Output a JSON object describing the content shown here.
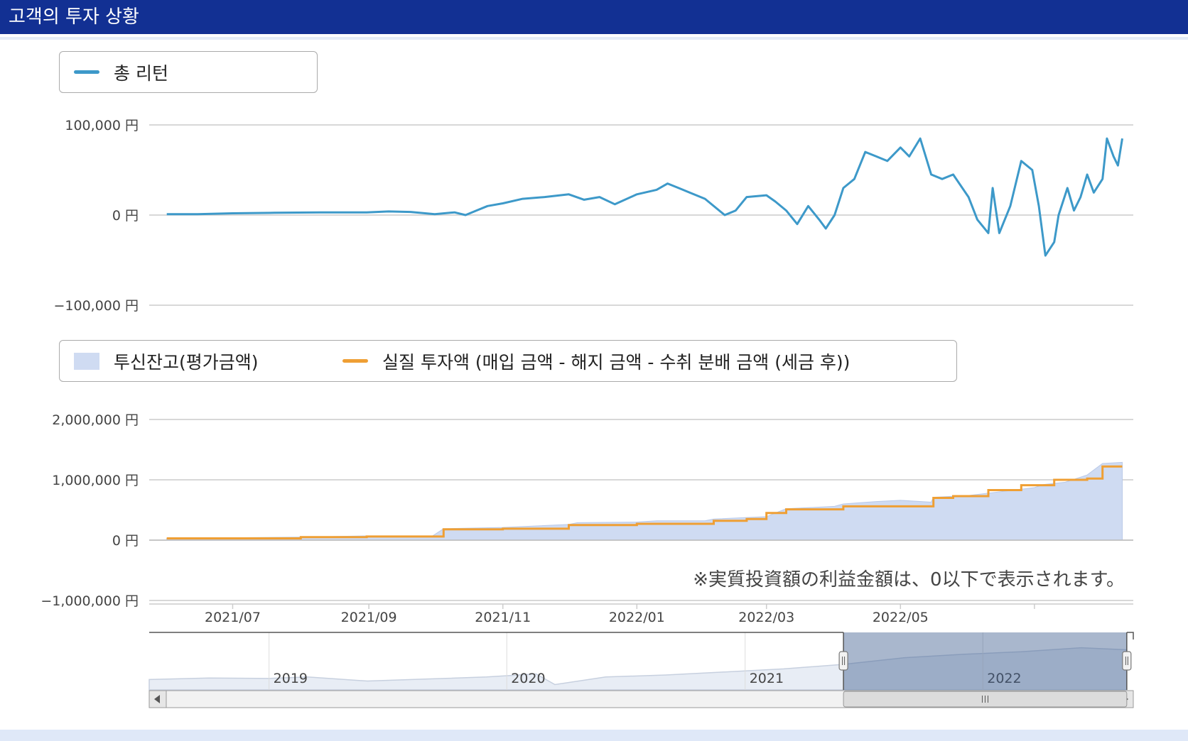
{
  "header": {
    "title": "고객의 투자 상황"
  },
  "colors": {
    "header_bg": "#123093",
    "return_line": "#3d99c9",
    "balance_area": "#cfdbf2",
    "invest_line": "#ef9f34"
  },
  "chart_data": [
    {
      "type": "line",
      "legend": [
        "총 리턴"
      ],
      "ylim": [
        -100000,
        100000
      ],
      "yticks": [
        {
          "value": 100000,
          "label": "100,000 円"
        },
        {
          "value": 0,
          "label": "0 円"
        },
        {
          "value": -100000,
          "label": "−100,000 円"
        }
      ],
      "series": [
        {
          "name": "총 리턴",
          "color": "#3d99c9",
          "points": [
            [
              "2021-06-01",
              1000
            ],
            [
              "2021-06-15",
              1000
            ],
            [
              "2021-07-01",
              2000
            ],
            [
              "2021-07-20",
              2500
            ],
            [
              "2021-08-10",
              3000
            ],
            [
              "2021-08-31",
              3000
            ],
            [
              "2021-09-10",
              4000
            ],
            [
              "2021-09-20",
              3500
            ],
            [
              "2021-10-01",
              1000
            ],
            [
              "2021-10-10",
              3000
            ],
            [
              "2021-10-15",
              0
            ],
            [
              "2021-10-20",
              5000
            ],
            [
              "2021-10-25",
              10000
            ],
            [
              "2021-11-01",
              13000
            ],
            [
              "2021-11-10",
              18000
            ],
            [
              "2021-11-20",
              20000
            ],
            [
              "2021-12-01",
              23000
            ],
            [
              "2021-12-08",
              17000
            ],
            [
              "2021-12-15",
              20000
            ],
            [
              "2021-12-22",
              12000
            ],
            [
              "2022-01-01",
              23000
            ],
            [
              "2022-01-10",
              28000
            ],
            [
              "2022-01-15",
              35000
            ],
            [
              "2022-01-20",
              30000
            ],
            [
              "2022-01-25",
              25000
            ],
            [
              "2022-02-01",
              18000
            ],
            [
              "2022-02-10",
              0
            ],
            [
              "2022-02-15",
              5000
            ],
            [
              "2022-02-20",
              20000
            ],
            [
              "2022-03-01",
              22000
            ],
            [
              "2022-03-05",
              15000
            ],
            [
              "2022-03-10",
              5000
            ],
            [
              "2022-03-15",
              -10000
            ],
            [
              "2022-03-20",
              10000
            ],
            [
              "2022-03-25",
              -5000
            ],
            [
              "2022-03-28",
              -15000
            ],
            [
              "2022-04-01",
              0
            ],
            [
              "2022-04-05",
              30000
            ],
            [
              "2022-04-10",
              40000
            ],
            [
              "2022-04-15",
              70000
            ],
            [
              "2022-04-20",
              65000
            ],
            [
              "2022-04-25",
              60000
            ],
            [
              "2022-05-01",
              75000
            ],
            [
              "2022-05-05",
              65000
            ],
            [
              "2022-05-10",
              85000
            ],
            [
              "2022-05-15",
              45000
            ],
            [
              "2022-05-20",
              40000
            ],
            [
              "2022-05-25",
              45000
            ],
            [
              "2022-06-01",
              20000
            ],
            [
              "2022-06-05",
              -5000
            ],
            [
              "2022-06-10",
              -20000
            ],
            [
              "2022-06-12",
              30000
            ],
            [
              "2022-06-15",
              -20000
            ],
            [
              "2022-06-20",
              10000
            ],
            [
              "2022-06-25",
              60000
            ],
            [
              "2022-06-30",
              50000
            ],
            [
              "2022-07-03",
              10000
            ],
            [
              "2022-07-06",
              -45000
            ],
            [
              "2022-07-10",
              -30000
            ],
            [
              "2022-07-12",
              0
            ],
            [
              "2022-07-16",
              30000
            ],
            [
              "2022-07-19",
              5000
            ],
            [
              "2022-07-22",
              20000
            ],
            [
              "2022-07-25",
              45000
            ],
            [
              "2022-07-28",
              25000
            ],
            [
              "2022-08-01",
              40000
            ],
            [
              "2022-08-03",
              85000
            ],
            [
              "2022-08-06",
              65000
            ],
            [
              "2022-08-08",
              55000
            ],
            [
              "2022-08-10",
              85000
            ]
          ]
        }
      ]
    },
    {
      "type": "area",
      "legend": [
        "투신잔고(평가금액)",
        "실질 투자액 (매입 금액 - 해지 금액 - 수취 분배 금액 (세금 후))"
      ],
      "ylim": [
        -1000000,
        2000000
      ],
      "yticks": [
        {
          "value": 2000000,
          "label": "2,000,000 円"
        },
        {
          "value": 1000000,
          "label": "1,000,000 円"
        },
        {
          "value": 0,
          "label": "0 円"
        },
        {
          "value": -1000000,
          "label": "−1,000,000 円"
        }
      ],
      "x_range": [
        "2021-05-24",
        "2022-08-15"
      ],
      "x_ticks": [
        "2021/07",
        "2021/09",
        "2021/11",
        "2022/01",
        "2022/03",
        "2022/05"
      ],
      "note": "※実質投資額の利益金額は、0以下で表示されます。",
      "series": [
        {
          "name": "투신잔고(평가금액)",
          "type": "area",
          "color": "#cfdbf2",
          "points": [
            [
              "2021-06-01",
              30000
            ],
            [
              "2021-08-01",
              50000
            ],
            [
              "2021-08-31",
              70000
            ],
            [
              "2021-09-30",
              70000
            ],
            [
              "2021-10-05",
              190000
            ],
            [
              "2021-11-01",
              210000
            ],
            [
              "2021-12-01",
              260000
            ],
            [
              "2021-12-05",
              290000
            ],
            [
              "2022-01-01",
              300000
            ],
            [
              "2022-01-10",
              320000
            ],
            [
              "2022-02-01",
              320000
            ],
            [
              "2022-02-05",
              350000
            ],
            [
              "2022-03-01",
              390000
            ],
            [
              "2022-03-05",
              450000
            ],
            [
              "2022-03-10",
              520000
            ],
            [
              "2022-04-01",
              560000
            ],
            [
              "2022-04-05",
              600000
            ],
            [
              "2022-04-20",
              640000
            ],
            [
              "2022-05-01",
              660000
            ],
            [
              "2022-05-15",
              630000
            ],
            [
              "2022-05-16",
              710000
            ],
            [
              "2022-06-01",
              740000
            ],
            [
              "2022-06-15",
              800000
            ],
            [
              "2022-07-01",
              870000
            ],
            [
              "2022-07-05",
              920000
            ],
            [
              "2022-07-15",
              960000
            ],
            [
              "2022-07-25",
              1080000
            ],
            [
              "2022-08-01",
              1270000
            ],
            [
              "2022-08-10",
              1290000
            ]
          ]
        },
        {
          "name": "실질 투자액 (매입 금액 - 해지 금액 - 수취 분배 금액 (세금 후))",
          "type": "step",
          "color": "#ef9f34",
          "points": [
            [
              "2021-06-01",
              30000
            ],
            [
              "2021-08-01",
              50000
            ],
            [
              "2021-08-31",
              60000
            ],
            [
              "2021-10-05",
              180000
            ],
            [
              "2021-11-01",
              190000
            ],
            [
              "2021-12-01",
              250000
            ],
            [
              "2022-01-01",
              270000
            ],
            [
              "2022-02-05",
              320000
            ],
            [
              "2022-02-20",
              350000
            ],
            [
              "2022-03-01",
              450000
            ],
            [
              "2022-03-10",
              510000
            ],
            [
              "2022-04-05",
              560000
            ],
            [
              "2022-05-16",
              700000
            ],
            [
              "2022-05-25",
              730000
            ],
            [
              "2022-06-10",
              830000
            ],
            [
              "2022-06-25",
              910000
            ],
            [
              "2022-07-10",
              1000000
            ],
            [
              "2022-07-25",
              1020000
            ],
            [
              "2022-08-01",
              1220000
            ],
            [
              "2022-08-10",
              1220000
            ]
          ]
        }
      ]
    }
  ],
  "navigator": {
    "year_labels": [
      "2019",
      "2020",
      "2021",
      "2022"
    ],
    "range_start": "2018-07-01",
    "range_end": "2022-08-20",
    "selected_start": "2021-06-01",
    "selected_end": "2022-08-10"
  }
}
